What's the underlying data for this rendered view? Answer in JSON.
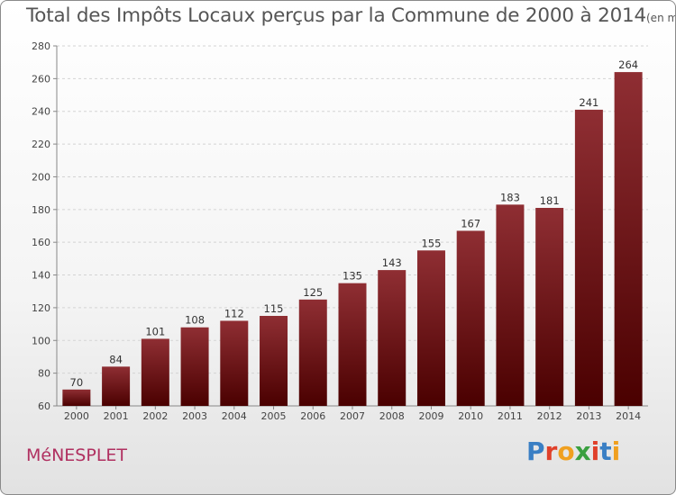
{
  "header": {
    "title": "Total des Impôts Locaux perçus par la Commune de 2000 à 2014",
    "unit": "(en milliers d'€)"
  },
  "commune": "MéNESPLET",
  "logo": {
    "letters": [
      "P",
      "r",
      "o",
      "x",
      "i",
      "t",
      "i"
    ],
    "colors": [
      "#3a7fc4",
      "#e0402a",
      "#f0a020",
      "#3aa040",
      "#e0402a",
      "#3a7fc4",
      "#f0a020"
    ]
  },
  "chart_data": {
    "type": "bar",
    "categories": [
      "2000",
      "2001",
      "2002",
      "2003",
      "2004",
      "2005",
      "2006",
      "2007",
      "2008",
      "2009",
      "2010",
      "2011",
      "2012",
      "2013",
      "2014"
    ],
    "values": [
      70,
      84,
      101,
      108,
      112,
      115,
      125,
      135,
      143,
      155,
      167,
      183,
      181,
      241,
      264
    ],
    "ylim": [
      60,
      280
    ],
    "yticks": [
      60,
      80,
      100,
      120,
      140,
      160,
      180,
      200,
      220,
      240,
      260,
      280
    ],
    "grid": true,
    "bar_color_top": "#8f2e33",
    "bar_color_bottom": "#4a0000"
  }
}
